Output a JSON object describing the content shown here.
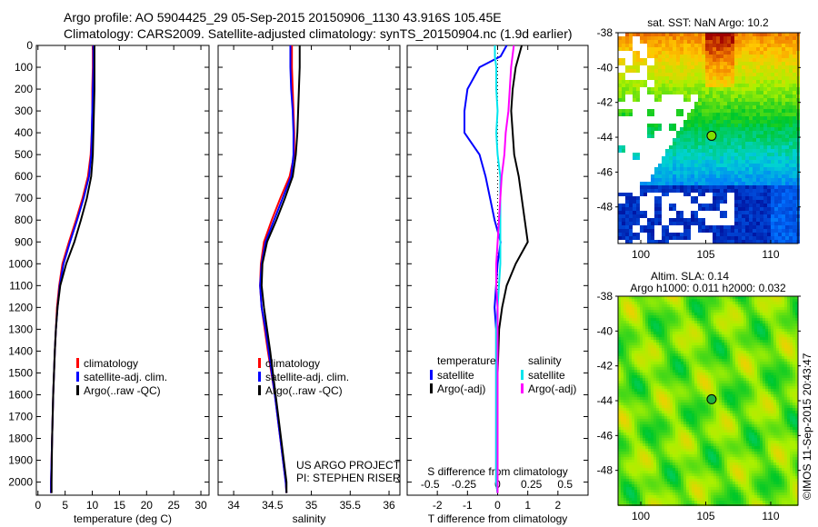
{
  "title_line1": "Argo profile: AO 5904425_29 05-Sep-2015 20150906_1130 43.916S 105.45E",
  "title_line2": "Climatology: CARS2009. Satellite-adjusted climatology: synTS_20150904.nc (1.9d earlier)",
  "credit": "US ARGO PROJECT",
  "pi": "PI: STEPHEN RISER",
  "timestamp": "©IMOS 11-Sep-2015 20:43:47",
  "colors": {
    "climatology": "#ff0000",
    "satellite": "#0000ff",
    "argo": "#000000",
    "s_satellite": "#00e5ee",
    "s_argo": "#ff00ff"
  },
  "chart_data": [
    {
      "type": "line",
      "name": "temperature",
      "xlabel": "temperature (deg C)",
      "xlim": [
        -0.3,
        31.5
      ],
      "ylim": [
        0,
        2060
      ],
      "xticks": [
        0,
        5,
        10,
        15,
        20,
        25,
        30
      ],
      "yticks": [
        0,
        100,
        200,
        300,
        400,
        500,
        600,
        700,
        800,
        900,
        1000,
        1100,
        1200,
        1300,
        1400,
        1500,
        1600,
        1700,
        1800,
        1900,
        2000
      ],
      "legend": [
        "climatology",
        "satellite-adj. clim.",
        "Argo(..raw -QC)"
      ],
      "depth": [
        0,
        100,
        200,
        300,
        400,
        500,
        600,
        700,
        800,
        900,
        1000,
        1100,
        1200,
        1300,
        1400,
        1600,
        1800,
        2000,
        2050
      ],
      "series": [
        {
          "name": "climatology",
          "color": "#ff0000",
          "values": [
            10.1,
            10.1,
            10.0,
            10.0,
            9.9,
            9.7,
            9.2,
            8.2,
            7.0,
            5.7,
            4.5,
            3.9,
            3.5,
            3.3,
            3.1,
            2.8,
            2.6,
            2.4,
            2.4
          ]
        },
        {
          "name": "satellite-adj. clim.",
          "color": "#0000ff",
          "values": [
            10.2,
            10.2,
            10.1,
            10.0,
            9.9,
            9.8,
            9.4,
            8.4,
            7.2,
            5.9,
            4.7,
            4.0,
            3.6,
            3.3,
            3.1,
            2.8,
            2.6,
            2.4,
            2.4
          ]
        },
        {
          "name": "Argo(..raw -QC)",
          "color": "#000000",
          "values": [
            10.4,
            10.4,
            10.4,
            10.3,
            10.2,
            10.1,
            9.8,
            9.0,
            7.9,
            6.7,
            5.2,
            4.1,
            3.6,
            3.3,
            3.1,
            2.8,
            2.6,
            2.5,
            2.5
          ]
        }
      ]
    },
    {
      "type": "line",
      "name": "salinity",
      "xlabel": "salinity",
      "xlim": [
        33.8,
        36.14
      ],
      "ylim": [
        0,
        2060
      ],
      "xticks": [
        34,
        34.5,
        35,
        35.5,
        36
      ],
      "legend": [
        "climatology",
        "satellite-adj. clim.",
        "Argo(..raw -QC)"
      ],
      "depth": [
        0,
        100,
        200,
        300,
        400,
        500,
        600,
        700,
        800,
        900,
        1000,
        1100,
        1200,
        1300,
        1400,
        1600,
        1800,
        2000,
        2050
      ],
      "series": [
        {
          "name": "climatology",
          "color": "#ff0000",
          "values": [
            34.75,
            34.75,
            34.76,
            34.77,
            34.78,
            34.78,
            34.72,
            34.6,
            34.49,
            34.39,
            34.35,
            34.34,
            34.36,
            34.4,
            34.44,
            34.53,
            34.6,
            34.67,
            34.68
          ]
        },
        {
          "name": "satellite-adj. clim.",
          "color": "#0000ff",
          "values": [
            34.73,
            34.73,
            34.74,
            34.76,
            34.77,
            34.77,
            34.74,
            34.63,
            34.52,
            34.41,
            34.36,
            34.34,
            34.36,
            34.41,
            34.45,
            34.53,
            34.6,
            34.67,
            34.68
          ]
        },
        {
          "name": "Argo(..raw -QC)",
          "color": "#000000",
          "values": [
            34.85,
            34.85,
            34.84,
            34.83,
            34.82,
            34.8,
            34.76,
            34.66,
            34.55,
            34.43,
            34.37,
            34.36,
            34.39,
            34.43,
            34.47,
            34.54,
            34.61,
            34.68,
            34.68
          ]
        }
      ]
    },
    {
      "type": "line",
      "name": "difference",
      "xlabel": "T difference from climatology",
      "x2label": "S difference from climatology",
      "xlim": [
        -3,
        3
      ],
      "x2lim": [
        -0.67,
        0.67
      ],
      "xticks": [
        -2,
        -1,
        0,
        1,
        2
      ],
      "x2ticks": [
        "-0.5",
        "-0.25",
        "0",
        "0.25",
        "0.5"
      ],
      "x2tick_values": [
        -0.5,
        -0.25,
        0,
        0.25,
        0.5
      ],
      "legend_temperature": {
        "title": "temperature",
        "items": [
          "satellite",
          "Argo(-adj)"
        ]
      },
      "legend_salinity": {
        "title": "salinity",
        "items": [
          "satellite",
          "Argo(-adj)"
        ]
      },
      "depth": [
        0,
        50,
        100,
        200,
        300,
        400,
        500,
        600,
        700,
        800,
        900,
        1000,
        1100,
        1200,
        1300,
        1500,
        1800,
        2000,
        2050
      ],
      "series": [
        {
          "name": "T satellite",
          "axis": "T",
          "color": "#0000ff",
          "values": [
            0.3,
            0.1,
            -0.6,
            -1.0,
            -1.1,
            -1.1,
            -0.6,
            -0.4,
            -0.25,
            -0.1,
            0.1,
            0.0,
            -0.05,
            -0.1,
            -0.05,
            -0.05,
            -0.05,
            -0.05,
            0.0
          ]
        },
        {
          "name": "T Argo(-adj)",
          "axis": "T",
          "color": "#000000",
          "values": [
            0.8,
            0.7,
            0.6,
            0.5,
            0.45,
            0.5,
            0.55,
            0.7,
            0.8,
            0.9,
            1.0,
            0.6,
            0.3,
            0.15,
            0.05,
            0.0,
            0.0,
            0.0,
            0.0
          ]
        },
        {
          "name": "S satellite",
          "axis": "S",
          "color": "#00e5ee",
          "values": [
            -0.02,
            -0.02,
            -0.01,
            -0.01,
            0.0,
            -0.01,
            0.0,
            0.02,
            0.02,
            0.02,
            0.02,
            0.02,
            0.01,
            0.0,
            -0.01,
            -0.01,
            -0.01,
            -0.01,
            0.0
          ]
        },
        {
          "name": "S Argo(-adj)",
          "axis": "S",
          "color": "#ff00ff",
          "values": [
            0.12,
            0.11,
            0.1,
            0.09,
            0.08,
            0.06,
            0.05,
            0.03,
            0.02,
            0.01,
            0.0,
            -0.01,
            -0.01,
            0.0,
            0.0,
            0.0,
            0.0,
            0.0,
            0.0
          ]
        }
      ]
    },
    {
      "type": "heatmap",
      "name": "sst-map",
      "title": "sat. SST: NaN Argo: 10.2",
      "xlim": [
        98.25,
        112.1
      ],
      "ylim": [
        -50.1,
        -38
      ],
      "xticks": [
        100,
        105,
        110
      ],
      "yticks": [
        -38,
        -40,
        -42,
        -44,
        -46,
        -48
      ],
      "float_position": [
        105.45,
        -43.916
      ]
    },
    {
      "type": "heatmap",
      "name": "sla-map",
      "title": "Altim. SLA: 0.14",
      "subtitle": "Argo h1000: 0.011 h2000: 0.032",
      "xlim": [
        98.25,
        112.1
      ],
      "ylim": [
        -50,
        -38
      ],
      "xticks": [
        100,
        105,
        110
      ],
      "yticks": [
        -38,
        -40,
        -42,
        -44,
        -46,
        -48
      ],
      "float_position": [
        105.45,
        -43.916
      ]
    }
  ]
}
